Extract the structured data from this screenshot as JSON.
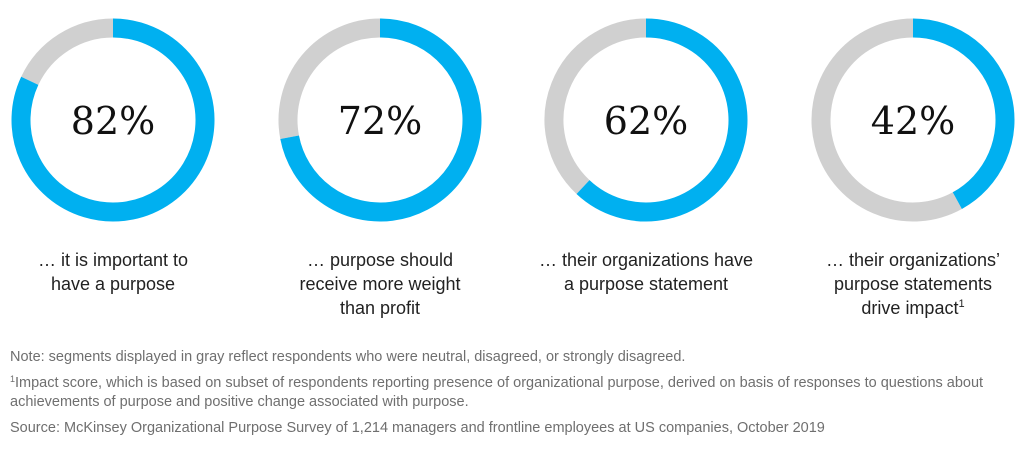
{
  "chart_data": {
    "type": "pie",
    "variant": "donut",
    "colors": {
      "positive": "#00b0f0",
      "other": "#d0d0d0"
    },
    "items": [
      {
        "value": 82,
        "label": "82%",
        "caption": "… it is important to have a purpose",
        "caption_lines": [
          "… it is important to",
          "have a purpose"
        ],
        "sup": ""
      },
      {
        "value": 72,
        "label": "72%",
        "caption": "… purpose should receive more weight than profit",
        "caption_lines": [
          "… purpose should",
          "receive more weight",
          "than profit"
        ],
        "sup": ""
      },
      {
        "value": 62,
        "label": "62%",
        "caption": "… their organizations have a purpose statement",
        "caption_lines": [
          "… their organizations have",
          "a purpose statement"
        ],
        "sup": ""
      },
      {
        "value": 42,
        "label": "42%",
        "caption": "… their organizations’ purpose statements drive impact",
        "caption_lines": [
          "… their organizations’",
          "purpose statements",
          "drive impact"
        ],
        "sup": "1"
      }
    ]
  },
  "notes": {
    "note": "Note: segments displayed in gray reflect respondents who were neutral, disagreed, or strongly disagreed.",
    "footnote_marker": "1",
    "footnote_text": "Impact score, which is based on subset of respondents reporting presence of organizational purpose, derived on basis of responses to questions about achievements of purpose and positive change associated with purpose.",
    "source": "Source: McKinsey Organizational Purpose Survey of 1,214 managers and frontline employees at US companies, October 2019"
  }
}
